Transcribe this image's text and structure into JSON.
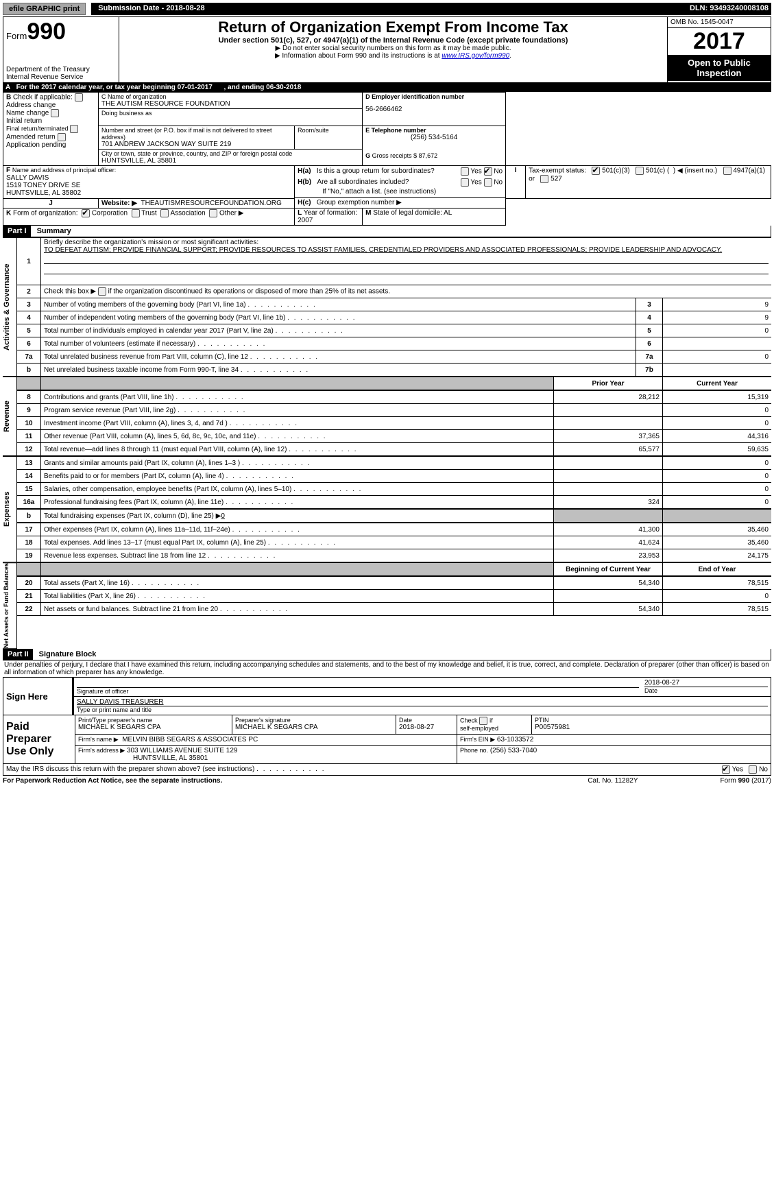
{
  "top": {
    "efile": "efile GRAPHIC print",
    "submission_label": "Submission Date - 2018-08-28",
    "dln": "DLN: 93493240008108"
  },
  "header": {
    "form_prefix": "Form",
    "form_number": "990",
    "dept1": "Department of the Treasury",
    "dept2": "Internal Revenue Service",
    "title": "Return of Organization Exempt From Income Tax",
    "subtitle": "Under section 501(c), 527, or 4947(a)(1) of the Internal Revenue Code (except private foundations)",
    "note1": "▶ Do not enter social security numbers on this form as it may be made public.",
    "note2_prefix": "▶ Information about Form 990 and its instructions is at ",
    "note2_link": "www.IRS.gov/form990",
    "omb": "OMB No. 1545-0047",
    "year": "2017",
    "open_public1": "Open to Public",
    "open_public2": "Inspection"
  },
  "a_line": {
    "prefix": "A",
    "text": "For the 2017 calendar year, or tax year beginning 07-01-2017",
    "mid": ", and ending 06-30-2018"
  },
  "box_b": {
    "label": "B",
    "check_if": "Check if applicable:",
    "opts": [
      "Address change",
      "Name change",
      "Initial return",
      "Final return/terminated",
      "Amended return",
      "Application pending"
    ]
  },
  "box_c": {
    "label": "C Name of organization",
    "name": "THE AUTISM RESOURCE FOUNDATION",
    "dba_label": "Doing business as",
    "street_label": "Number and street (or P.O. box if mail is not delivered to street address)",
    "room_label": "Room/suite",
    "street": "701 ANDREW JACKSON WAY SUITE 219",
    "city_label": "City or town, state or province, country, and ZIP or foreign postal code",
    "city": "HUNTSVILLE, AL  35801"
  },
  "box_d": {
    "label": "D Employer identification number",
    "value": "56-2666462"
  },
  "box_e": {
    "label": "E Telephone number",
    "value": "(256) 534-5164"
  },
  "box_g": {
    "label": "G",
    "text": "Gross receipts $ 87,672"
  },
  "box_f": {
    "label": "F",
    "text": "Name and address of principal officer:",
    "line1": "SALLY DAVIS",
    "line2": "1519 TONEY DRIVE SE",
    "line3": "HUNTSVILLE, AL  35802"
  },
  "box_h": {
    "ha_label": "H(a)",
    "ha_text": "Is this a group return for subordinates?",
    "hb_label": "H(b)",
    "hb_text": "Are all subordinates included?",
    "hb_note": "If \"No,\" attach a list. (see instructions)",
    "hc_label": "H(c)",
    "hc_text": "Group exemption number ▶",
    "yes": "Yes",
    "no": "No"
  },
  "box_i": {
    "label": "I",
    "text": "Tax-exempt status:",
    "opt1": "501(c)(3)",
    "opt2a": "501(c) (",
    "opt2b": ") ◀ (insert no.)",
    "opt3": "4947(a)(1) or",
    "opt4": "527"
  },
  "box_j": {
    "label": "J",
    "text": "Website: ▶",
    "value": "THEAUTISMRESOURCEFOUNDATION.ORG"
  },
  "box_k": {
    "label": "K",
    "text": "Form of organization:",
    "opts": [
      "Corporation",
      "Trust",
      "Association",
      "Other ▶"
    ]
  },
  "box_l": {
    "label": "L",
    "text": "Year of formation: 2007"
  },
  "box_m": {
    "label": "M",
    "text": "State of legal domicile: AL"
  },
  "part1": {
    "header": "Part I",
    "title": "Summary"
  },
  "summary": {
    "line1_label": "1",
    "line1_text": "Briefly describe the organization's mission or most significant activities:",
    "mission": "TO DEFEAT AUTISM; PROVIDE FINANCIAL SUPPORT; PROVIDE RESOURCES TO ASSIST FAMILIES, CREDENTIALED PROVIDERS AND ASSOCIATED PROFESSIONALS; PROVIDE LEADERSHIP AND ADVOCACY.",
    "line2_label": "2",
    "line2_text": "Check this box ▶",
    "line2_suffix": "if the organization discontinued its operations or disposed of more than 25% of its net assets.",
    "rows_gov": [
      {
        "n": "3",
        "d": "Number of voting members of the governing body (Part VI, line 1a)",
        "c": "3",
        "v": "9"
      },
      {
        "n": "4",
        "d": "Number of independent voting members of the governing body (Part VI, line 1b)",
        "c": "4",
        "v": "9"
      },
      {
        "n": "5",
        "d": "Total number of individuals employed in calendar year 2017 (Part V, line 2a)",
        "c": "5",
        "v": "0"
      },
      {
        "n": "6",
        "d": "Total number of volunteers (estimate if necessary)",
        "c": "6",
        "v": ""
      },
      {
        "n": "7a",
        "d": "Total unrelated business revenue from Part VIII, column (C), line 12",
        "c": "7a",
        "v": "0"
      },
      {
        "n": "b",
        "d": "Net unrelated business taxable income from Form 990-T, line 34",
        "c": "7b",
        "v": ""
      }
    ],
    "prior_year": "Prior Year",
    "current_year": "Current Year",
    "rows_rev": [
      {
        "n": "8",
        "d": "Contributions and grants (Part VIII, line 1h)",
        "p": "28,212",
        "c": "15,319"
      },
      {
        "n": "9",
        "d": "Program service revenue (Part VIII, line 2g)",
        "p": "",
        "c": "0"
      },
      {
        "n": "10",
        "d": "Investment income (Part VIII, column (A), lines 3, 4, and 7d )",
        "p": "",
        "c": "0"
      },
      {
        "n": "11",
        "d": "Other revenue (Part VIII, column (A), lines 5, 6d, 8c, 9c, 10c, and 11e)",
        "p": "37,365",
        "c": "44,316"
      },
      {
        "n": "12",
        "d": "Total revenue—add lines 8 through 11 (must equal Part VIII, column (A), line 12)",
        "p": "65,577",
        "c": "59,635"
      }
    ],
    "rows_exp": [
      {
        "n": "13",
        "d": "Grants and similar amounts paid (Part IX, column (A), lines 1–3 )",
        "p": "",
        "c": "0"
      },
      {
        "n": "14",
        "d": "Benefits paid to or for members (Part IX, column (A), line 4)",
        "p": "",
        "c": "0"
      },
      {
        "n": "15",
        "d": "Salaries, other compensation, employee benefits (Part IX, column (A), lines 5–10)",
        "p": "",
        "c": "0"
      },
      {
        "n": "16a",
        "d": "Professional fundraising fees (Part IX, column (A), line 11e)",
        "p": "324",
        "c": "0"
      }
    ],
    "row_16b": {
      "n": "b",
      "d": "Total fundraising expenses (Part IX, column (D), line 25) ▶",
      "v": "0"
    },
    "rows_exp2": [
      {
        "n": "17",
        "d": "Other expenses (Part IX, column (A), lines 11a–11d, 11f–24e)",
        "p": "41,300",
        "c": "35,460"
      },
      {
        "n": "18",
        "d": "Total expenses. Add lines 13–17 (must equal Part IX, column (A), line 25)",
        "p": "41,624",
        "c": "35,460"
      },
      {
        "n": "19",
        "d": "Revenue less expenses. Subtract line 18 from line 12",
        "p": "23,953",
        "c": "24,175"
      }
    ],
    "begin_year": "Beginning of Current Year",
    "end_year": "End of Year",
    "rows_net": [
      {
        "n": "20",
        "d": "Total assets (Part X, line 16)",
        "p": "54,340",
        "c": "78,515"
      },
      {
        "n": "21",
        "d": "Total liabilities (Part X, line 26)",
        "p": "",
        "c": "0"
      },
      {
        "n": "22",
        "d": "Net assets or fund balances. Subtract line 21 from line 20",
        "p": "54,340",
        "c": "78,515"
      }
    ]
  },
  "sides": {
    "gov": "Activities & Governance",
    "rev": "Revenue",
    "exp": "Expenses",
    "net": "Net Assets or Fund Balances"
  },
  "part2": {
    "header": "Part II",
    "title": "Signature Block"
  },
  "sig": {
    "declaration": "Under penalties of perjury, I declare that I have examined this return, including accompanying schedules and statements, and to the best of my knowledge and belief, it is true, correct, and complete. Declaration of preparer (other than officer) is based on all information of which preparer has any knowledge.",
    "sign_here": "Sign Here",
    "sig_officer": "Signature of officer",
    "date": "2018-08-27",
    "date_label": "Date",
    "name_title": "SALLY DAVIS TREASURER",
    "name_title_label": "Type or print name and title",
    "paid": "Paid Preparer Use Only",
    "prep_name_label": "Print/Type preparer's name",
    "prep_name": "MICHAEL K SEGARS CPA",
    "prep_sig_label": "Preparer's signature",
    "prep_sig": "MICHAEL K SEGARS CPA",
    "prep_date_label": "Date",
    "prep_date": "2018-08-27",
    "check_label": "Check",
    "self_emp": "self-employed",
    "if": "if",
    "ptin_label": "PTIN",
    "ptin": "P00575981",
    "firm_name_label": "Firm's name    ▶",
    "firm_name": "MELVIN BIBB SEGARS & ASSOCIATES PC",
    "firm_addr_label": "Firm's address ▶",
    "firm_addr1": "303 WILLIAMS AVENUE SUITE 129",
    "firm_addr2": "HUNTSVILLE, AL  35801",
    "firm_ein_label": "Firm's EIN ▶",
    "firm_ein": "63-1033572",
    "phone_label": "Phone no.",
    "phone": "(256) 533-7040",
    "discuss": "May the IRS discuss this return with the preparer shown above? (see instructions)",
    "yes": "Yes",
    "no": "No"
  },
  "footer": {
    "left": "For Paperwork Reduction Act Notice, see the separate instructions.",
    "mid": "Cat. No. 11282Y",
    "right_prefix": "Form ",
    "right_form": "990",
    "right_suffix": " (2017)"
  }
}
